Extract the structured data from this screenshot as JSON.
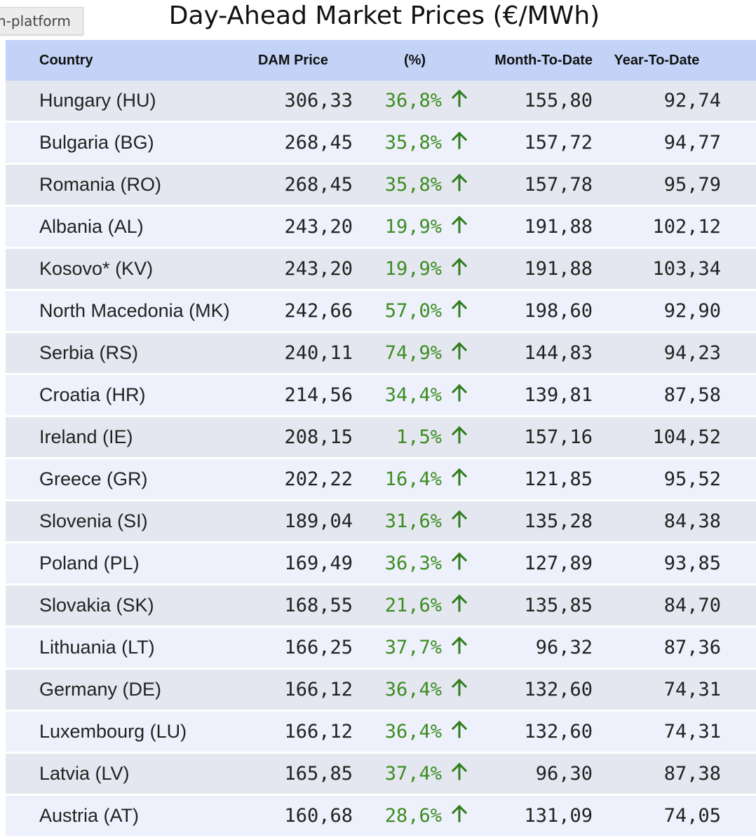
{
  "tooltip": {
    "text": "n-platform"
  },
  "title": "Day-Ahead Market Prices (€/MWh)",
  "columns": {
    "country": "Country",
    "dam": "DAM Price",
    "pct": "(%)",
    "mtd": "Month-To-Date",
    "ytd": "Year-To-Date"
  },
  "colors": {
    "header_bg": "#c3d3f7",
    "row_odd": "#e4e7ef",
    "row_even": "#eef1fb",
    "positive": "#3c8d22"
  },
  "rows": [
    {
      "country": "Hungary (HU)",
      "dam": "306,33",
      "pct": "36,8%",
      "trend": "up-arrow-icon",
      "mtd": "155,80",
      "ytd": "92,74"
    },
    {
      "country": "Bulgaria (BG)",
      "dam": "268,45",
      "pct": "35,8%",
      "trend": "up-arrow-icon",
      "mtd": "157,72",
      "ytd": "94,77"
    },
    {
      "country": "Romania (RO)",
      "dam": "268,45",
      "pct": "35,8%",
      "trend": "up-arrow-icon",
      "mtd": "157,78",
      "ytd": "95,79"
    },
    {
      "country": "Albania (AL)",
      "dam": "243,20",
      "pct": "19,9%",
      "trend": "up-arrow-icon",
      "mtd": "191,88",
      "ytd": "102,12"
    },
    {
      "country": "Kosovo* (KV)",
      "dam": "243,20",
      "pct": "19,9%",
      "trend": "up-arrow-icon",
      "mtd": "191,88",
      "ytd": "103,34"
    },
    {
      "country": "North Macedonia (MK)",
      "dam": "242,66",
      "pct": "57,0%",
      "trend": "up-arrow-icon",
      "mtd": "198,60",
      "ytd": "92,90"
    },
    {
      "country": "Serbia (RS)",
      "dam": "240,11",
      "pct": "74,9%",
      "trend": "up-arrow-icon",
      "mtd": "144,83",
      "ytd": "94,23"
    },
    {
      "country": "Croatia (HR)",
      "dam": "214,56",
      "pct": "34,4%",
      "trend": "up-arrow-icon",
      "mtd": "139,81",
      "ytd": "87,58"
    },
    {
      "country": "Ireland (IE)",
      "dam": "208,15",
      "pct": "1,5%",
      "trend": "up-arrow-icon",
      "mtd": "157,16",
      "ytd": "104,52"
    },
    {
      "country": "Greece (GR)",
      "dam": "202,22",
      "pct": "16,4%",
      "trend": "up-arrow-icon",
      "mtd": "121,85",
      "ytd": "95,52"
    },
    {
      "country": "Slovenia (SI)",
      "dam": "189,04",
      "pct": "31,6%",
      "trend": "up-arrow-icon",
      "mtd": "135,28",
      "ytd": "84,38"
    },
    {
      "country": "Poland (PL)",
      "dam": "169,49",
      "pct": "36,3%",
      "trend": "up-arrow-icon",
      "mtd": "127,89",
      "ytd": "93,85"
    },
    {
      "country": "Slovakia (SK)",
      "dam": "168,55",
      "pct": "21,6%",
      "trend": "up-arrow-icon",
      "mtd": "135,85",
      "ytd": "84,70"
    },
    {
      "country": "Lithuania (LT)",
      "dam": "166,25",
      "pct": "37,7%",
      "trend": "up-arrow-icon",
      "mtd": "96,32",
      "ytd": "87,36"
    },
    {
      "country": "Germany (DE)",
      "dam": "166,12",
      "pct": "36,4%",
      "trend": "up-arrow-icon",
      "mtd": "132,60",
      "ytd": "74,31"
    },
    {
      "country": "Luxembourg (LU)",
      "dam": "166,12",
      "pct": "36,4%",
      "trend": "up-arrow-icon",
      "mtd": "132,60",
      "ytd": "74,31"
    },
    {
      "country": "Latvia (LV)",
      "dam": "165,85",
      "pct": "37,4%",
      "trend": "up-arrow-icon",
      "mtd": "96,30",
      "ytd": "87,38"
    },
    {
      "country": "Austria (AT)",
      "dam": "160,68",
      "pct": "28,6%",
      "trend": "up-arrow-icon",
      "mtd": "131,09",
      "ytd": "74,05"
    }
  ]
}
